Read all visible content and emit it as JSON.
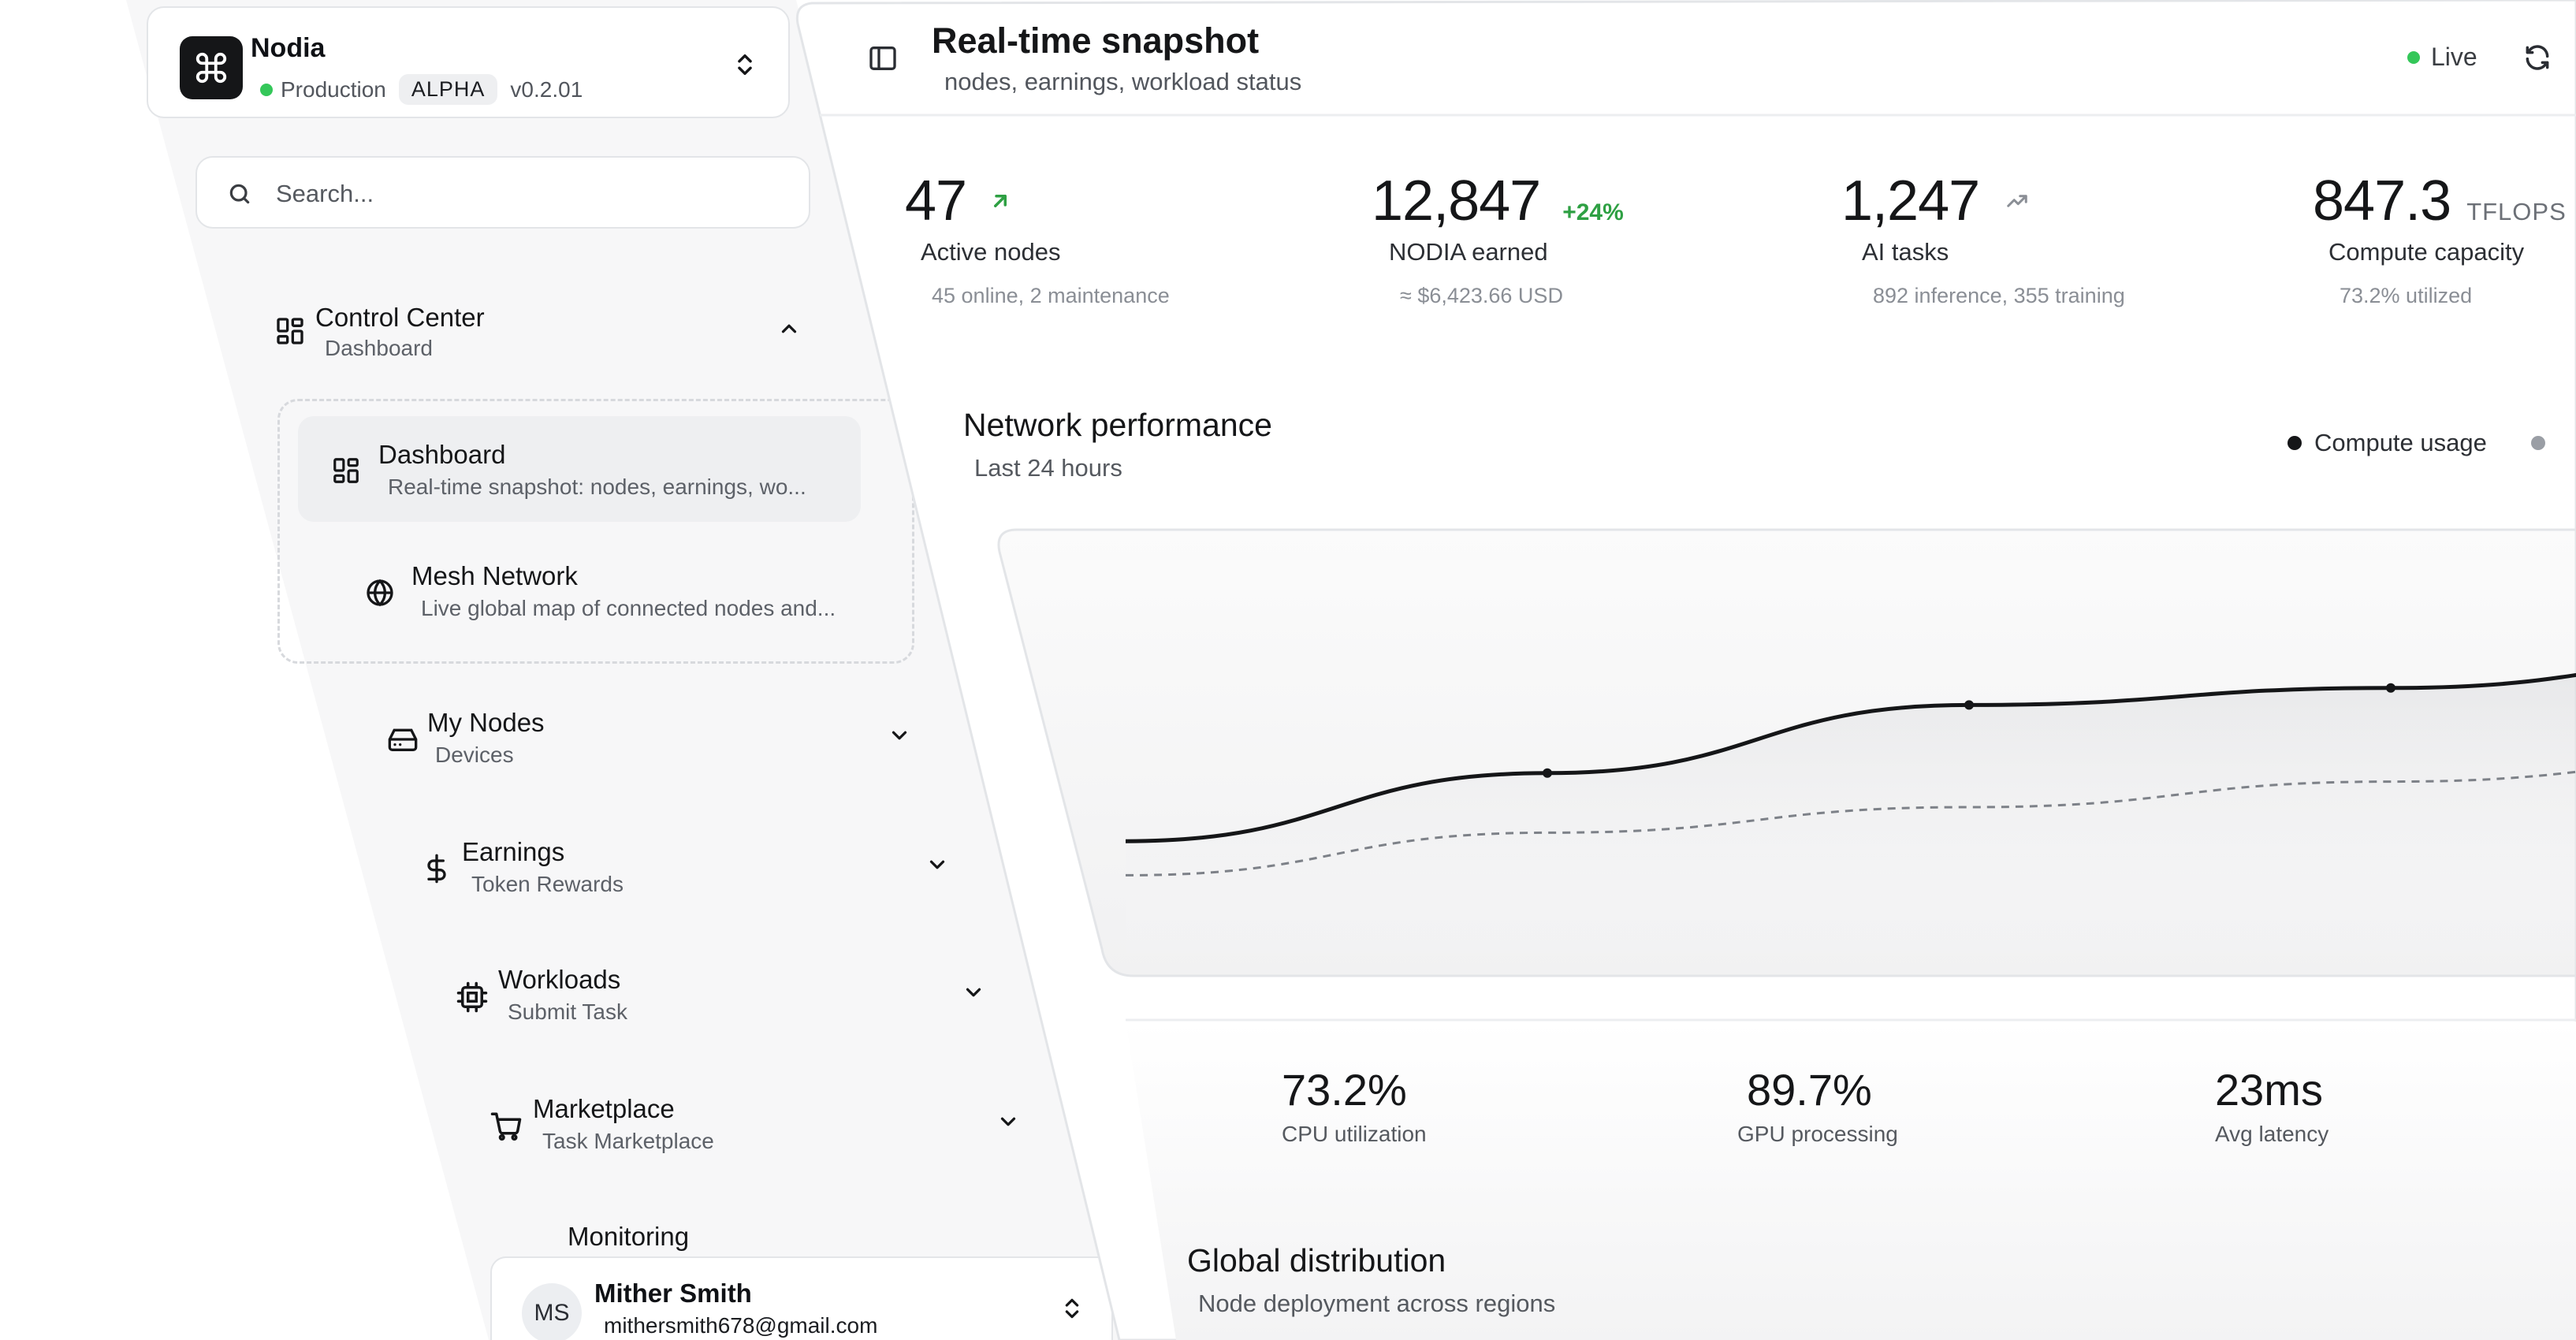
{
  "app": {
    "name": "Nodia",
    "environment": "Production",
    "badge": "ALPHA",
    "version": "v0.2.01"
  },
  "search": {
    "placeholder": "Search..."
  },
  "sidebar": {
    "groups": [
      {
        "title": "Control Center",
        "subtitle": "Dashboard",
        "icon": "dashboard-icon",
        "expanded": true,
        "children": [
          {
            "title": "Dashboard",
            "subtitle": "Real-time snapshot: nodes, earnings, wo...",
            "icon": "dashboard-icon",
            "active": true
          },
          {
            "title": "Mesh Network",
            "subtitle": "Live global map of connected nodes and...",
            "icon": "globe-icon"
          }
        ]
      },
      {
        "title": "My Nodes",
        "subtitle": "Devices",
        "icon": "hard-drive-icon"
      },
      {
        "title": "Earnings",
        "subtitle": "Token Rewards",
        "icon": "dollar-icon"
      },
      {
        "title": "Workloads",
        "subtitle": "Submit Task",
        "icon": "cpu-icon"
      },
      {
        "title": "Marketplace",
        "subtitle": "Task Marketplace",
        "icon": "cart-icon"
      },
      {
        "title": "Monitoring",
        "subtitle": "",
        "icon": ""
      }
    ]
  },
  "user": {
    "initials": "MS",
    "name": "Mither Smith",
    "email": "mithersmith678@gmail.com"
  },
  "header": {
    "title": "Real-time snapshot",
    "subtitle": "nodes, earnings, workload status",
    "status": "Live"
  },
  "stats": [
    {
      "value": "47",
      "label": "Active nodes",
      "foot": "45 online, 2 maintenance"
    },
    {
      "value": "12,847",
      "delta": "+24%",
      "label": "NODIA earned",
      "foot": "≈ $6,423.66 USD"
    },
    {
      "value": "1,247",
      "label": "AI tasks",
      "foot": "892 inference, 355 training"
    },
    {
      "value": "847.3",
      "unit": "TFLOPS",
      "label": "Compute capacity",
      "foot": "73.2% utilized"
    }
  ],
  "performance": {
    "title": "Network performance",
    "subtitle": "Last 24 hours",
    "legend": [
      "Compute usage"
    ]
  },
  "chart_data": {
    "type": "line",
    "title": "Network performance",
    "subtitle": "Last 24 hours",
    "x": [
      0,
      1,
      2,
      3,
      4
    ],
    "series": [
      {
        "name": "Compute usage",
        "values": [
          32,
          48,
          64,
          68,
          76
        ],
        "style": "solid"
      },
      {
        "name": "",
        "values": [
          24,
          34,
          40,
          46,
          52
        ],
        "style": "dashed"
      }
    ],
    "ylim": [
      0,
      100
    ],
    "grid": false,
    "legend_position": "top-right",
    "colors": {
      "compute": "#151618",
      "secondary": "#7d8188"
    }
  },
  "metrics": [
    {
      "value": "73.2%",
      "label": "CPU utilization"
    },
    {
      "value": "89.7%",
      "label": "GPU processing"
    },
    {
      "value": "23ms",
      "label": "Avg latency"
    }
  ],
  "distribution": {
    "title": "Global distribution",
    "subtitle": "Node deployment across regions"
  },
  "colors": {
    "live": "#34c759",
    "delta": "#2ea043",
    "text": "#151618"
  }
}
